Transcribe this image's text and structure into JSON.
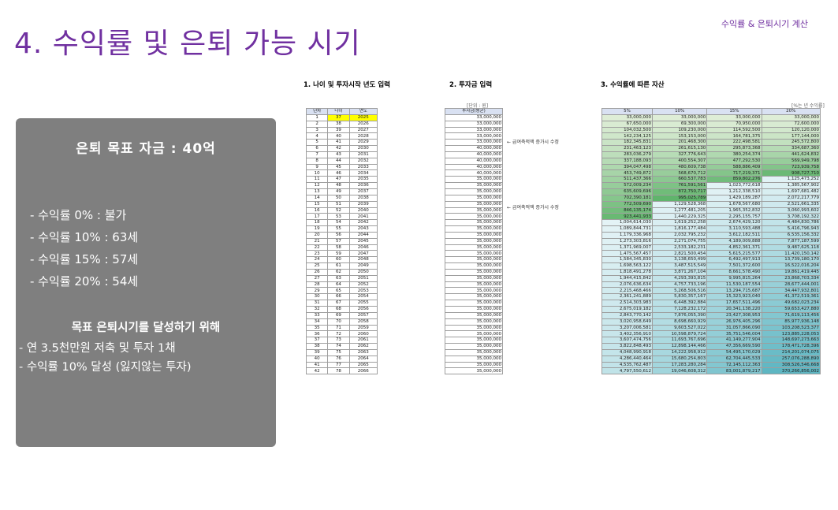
{
  "header": {
    "top_right": "수익률 & 은퇴시기 계산",
    "title": "4. 수익률 및 은퇴 가능 시기"
  },
  "panel": {
    "goal": "은퇴 목표 자금 : 40억",
    "items": [
      "- 수익률   0% : 불가",
      "- 수익률 10% : 63세",
      "- 수익률 15% : 57세",
      "- 수익률 20% : 54세"
    ],
    "subhead": "목표 은퇴시기를 달성하기 위해",
    "bullets": [
      "- 연 3.5천만원 저축 및 투자 1채",
      "- 수익률 10% 달성 (잃지않는 투자)"
    ]
  },
  "sections": {
    "s1": "1. 나이 및 투자시작 년도 입력",
    "s2": "2. 투자금 입력",
    "s3": "3. 수익률에 따른 자산"
  },
  "units": {
    "won": "[단위 : 원]",
    "rate": "[%는 년 수익률]"
  },
  "notes": [
    "← 급여축적액 증가시 수정",
    "← 급여축적액 증가시 수정"
  ],
  "age_table": {
    "headers": [
      "년차",
      "나이",
      "연도"
    ],
    "rows": [
      [
        "1",
        "37",
        "2025"
      ],
      [
        "2",
        "38",
        "2026"
      ],
      [
        "3",
        "39",
        "2027"
      ],
      [
        "4",
        "40",
        "2028"
      ],
      [
        "5",
        "41",
        "2029"
      ],
      [
        "6",
        "42",
        "2030"
      ],
      [
        "7",
        "43",
        "2031"
      ],
      [
        "8",
        "44",
        "2032"
      ],
      [
        "9",
        "45",
        "2033"
      ],
      [
        "10",
        "46",
        "2034"
      ],
      [
        "11",
        "47",
        "2035"
      ],
      [
        "12",
        "48",
        "2036"
      ],
      [
        "13",
        "49",
        "2037"
      ],
      [
        "14",
        "50",
        "2038"
      ],
      [
        "15",
        "51",
        "2039"
      ],
      [
        "16",
        "52",
        "2040"
      ],
      [
        "17",
        "53",
        "2041"
      ],
      [
        "18",
        "54",
        "2042"
      ],
      [
        "19",
        "55",
        "2043"
      ],
      [
        "20",
        "56",
        "2044"
      ],
      [
        "21",
        "57",
        "2045"
      ],
      [
        "22",
        "58",
        "2046"
      ],
      [
        "23",
        "59",
        "2047"
      ],
      [
        "24",
        "60",
        "2048"
      ],
      [
        "25",
        "61",
        "2049"
      ],
      [
        "26",
        "62",
        "2050"
      ],
      [
        "27",
        "63",
        "2051"
      ],
      [
        "28",
        "64",
        "2052"
      ],
      [
        "29",
        "65",
        "2053"
      ],
      [
        "30",
        "66",
        "2054"
      ],
      [
        "31",
        "67",
        "2055"
      ],
      [
        "32",
        "68",
        "2056"
      ],
      [
        "33",
        "69",
        "2057"
      ],
      [
        "34",
        "70",
        "2058"
      ],
      [
        "35",
        "71",
        "2059"
      ],
      [
        "36",
        "72",
        "2060"
      ],
      [
        "37",
        "73",
        "2061"
      ],
      [
        "38",
        "74",
        "2062"
      ],
      [
        "39",
        "75",
        "2063"
      ],
      [
        "40",
        "76",
        "2064"
      ],
      [
        "41",
        "77",
        "2065"
      ],
      [
        "42",
        "78",
        "2066"
      ]
    ]
  },
  "inv_table": {
    "header": "투자금(평균)",
    "values": [
      "33,000,000",
      "33,000,000",
      "33,000,000",
      "33,000,000",
      "33,000,000",
      "40,000,000",
      "40,000,000",
      "40,000,000",
      "40,000,000",
      "40,000,000",
      "35,000,000",
      "35,000,000",
      "35,000,000",
      "35,000,000",
      "35,000,000",
      "35,000,000",
      "35,000,000",
      "35,000,000",
      "35,000,000",
      "35,000,000",
      "35,000,000",
      "35,000,000",
      "35,000,000",
      "35,000,000",
      "35,000,000",
      "35,000,000",
      "35,000,000",
      "35,000,000",
      "35,000,000",
      "35,000,000",
      "35,000,000",
      "35,000,000",
      "35,000,000",
      "35,000,000",
      "35,000,000",
      "35,000,000",
      "35,000,000",
      "35,000,000",
      "35,000,000",
      "35,000,000",
      "35,000,000",
      "35,000,000"
    ]
  },
  "asset_table": {
    "headers": [
      "5%",
      "10%",
      "15%",
      "20%"
    ],
    "rows": [
      [
        "33,000,000",
        "33,000,000",
        "33,000,000",
        "33,000,000"
      ],
      [
        "67,650,000",
        "69,300,000",
        "70,950,000",
        "72,600,000"
      ],
      [
        "104,032,500",
        "109,230,000",
        "114,592,500",
        "120,120,000"
      ],
      [
        "142,234,125",
        "153,153,000",
        "164,781,375",
        "177,144,000"
      ],
      [
        "182,345,831",
        "201,468,300",
        "222,498,581",
        "245,572,800"
      ],
      [
        "231,463,123",
        "261,615,130",
        "295,873,368",
        "334,687,360"
      ],
      [
        "283,036,279",
        "327,776,643",
        "380,254,374",
        "441,624,832"
      ],
      [
        "337,188,093",
        "400,554,307",
        "477,292,530",
        "569,949,798"
      ],
      [
        "394,047,498",
        "480,609,738",
        "588,886,409",
        "723,939,758"
      ],
      [
        "453,749,872",
        "568,670,712",
        "717,219,371",
        "908,727,710"
      ],
      [
        "511,437,366",
        "660,537,783",
        "859,802,276",
        "1,125,473,252"
      ],
      [
        "572,009,234",
        "761,591,561",
        "1,023,772,618",
        "1,385,567,902"
      ],
      [
        "635,609,696",
        "872,750,717",
        "1,212,338,510",
        "1,697,681,482"
      ],
      [
        "702,390,181",
        "995,025,789",
        "1,429,189,287",
        "2,072,217,779"
      ],
      [
        "772,509,690",
        "1,129,528,368",
        "1,678,567,680",
        "2,521,661,335"
      ],
      [
        "846,135,174",
        "1,277,481,205",
        "1,965,352,832",
        "3,060,993,602"
      ],
      [
        "923,441,933",
        "1,440,229,325",
        "2,295,155,757",
        "3,708,192,322"
      ],
      [
        "1,004,614,030",
        "1,619,252,258",
        "2,674,429,120",
        "4,484,830,786"
      ],
      [
        "1,089,844,731",
        "1,816,177,484",
        "3,110,593,488",
        "5,416,796,943"
      ],
      [
        "1,179,336,968",
        "2,032,795,232",
        "3,612,182,511",
        "6,535,156,332"
      ],
      [
        "1,273,303,816",
        "2,271,074,755",
        "4,189,009,888",
        "7,877,187,599"
      ],
      [
        "1,371,969,007",
        "2,533,182,231",
        "4,852,361,371",
        "9,487,625,118"
      ],
      [
        "1,475,567,457",
        "2,821,500,454",
        "5,615,215,577",
        "11,420,150,142"
      ],
      [
        "1,584,345,830",
        "3,138,650,499",
        "6,492,497,913",
        "13,739,180,170"
      ],
      [
        "1,698,563,122",
        "3,487,515,549",
        "7,501,372,600",
        "16,522,016,204"
      ],
      [
        "1,818,491,278",
        "3,871,267,104",
        "8,661,578,490",
        "19,861,419,445"
      ],
      [
        "1,944,415,842",
        "4,293,393,815",
        "9,995,815,264",
        "23,868,703,334"
      ],
      [
        "2,076,636,634",
        "4,757,733,196",
        "11,530,187,554",
        "28,677,444,001"
      ],
      [
        "2,215,468,466",
        "5,268,506,516",
        "13,294,715,687",
        "34,447,932,801"
      ],
      [
        "2,361,241,889",
        "5,830,357,167",
        "15,323,923,040",
        "41,372,519,361"
      ],
      [
        "2,514,303,983",
        "6,448,392,884",
        "17,657,511,496",
        "49,682,023,234"
      ],
      [
        "2,675,019,182",
        "7,128,232,172",
        "20,341,138,220",
        "59,653,427,880"
      ],
      [
        "2,843,770,142",
        "7,876,055,390",
        "23,427,308,953",
        "71,619,113,456"
      ],
      [
        "3,020,958,649",
        "8,698,660,929",
        "26,976,405,296",
        "85,977,936,148"
      ],
      [
        "3,207,006,581",
        "9,603,527,022",
        "31,057,866,090",
        "103,208,523,377"
      ],
      [
        "3,402,356,910",
        "10,598,879,724",
        "35,751,546,004",
        "123,885,228,053"
      ],
      [
        "3,607,474,756",
        "11,693,767,696",
        "41,149,277,904",
        "148,697,273,663"
      ],
      [
        "3,822,848,493",
        "12,898,144,466",
        "47,356,669,590",
        "178,471,728,396"
      ],
      [
        "4,048,990,918",
        "14,222,958,912",
        "54,495,170,029",
        "214,201,074,075"
      ],
      [
        "4,286,440,464",
        "15,680,254,803",
        "62,704,445,533",
        "257,076,288,890"
      ],
      [
        "4,535,762,487",
        "17,283,280,284",
        "72,145,112,363",
        "308,526,546,668"
      ],
      [
        "4,797,550,612",
        "19,046,608,312",
        "83,001,879,217",
        "370,266,856,002"
      ]
    ]
  },
  "colors": {
    "purple": "#7030a0",
    "panel": "#7f7f7f",
    "highlight": "#ffff00",
    "green_light": "#e2efda",
    "green_dark": "#5fb46b",
    "blue_light": "#e4f3f6",
    "blue_dark": "#5eb6c2"
  }
}
